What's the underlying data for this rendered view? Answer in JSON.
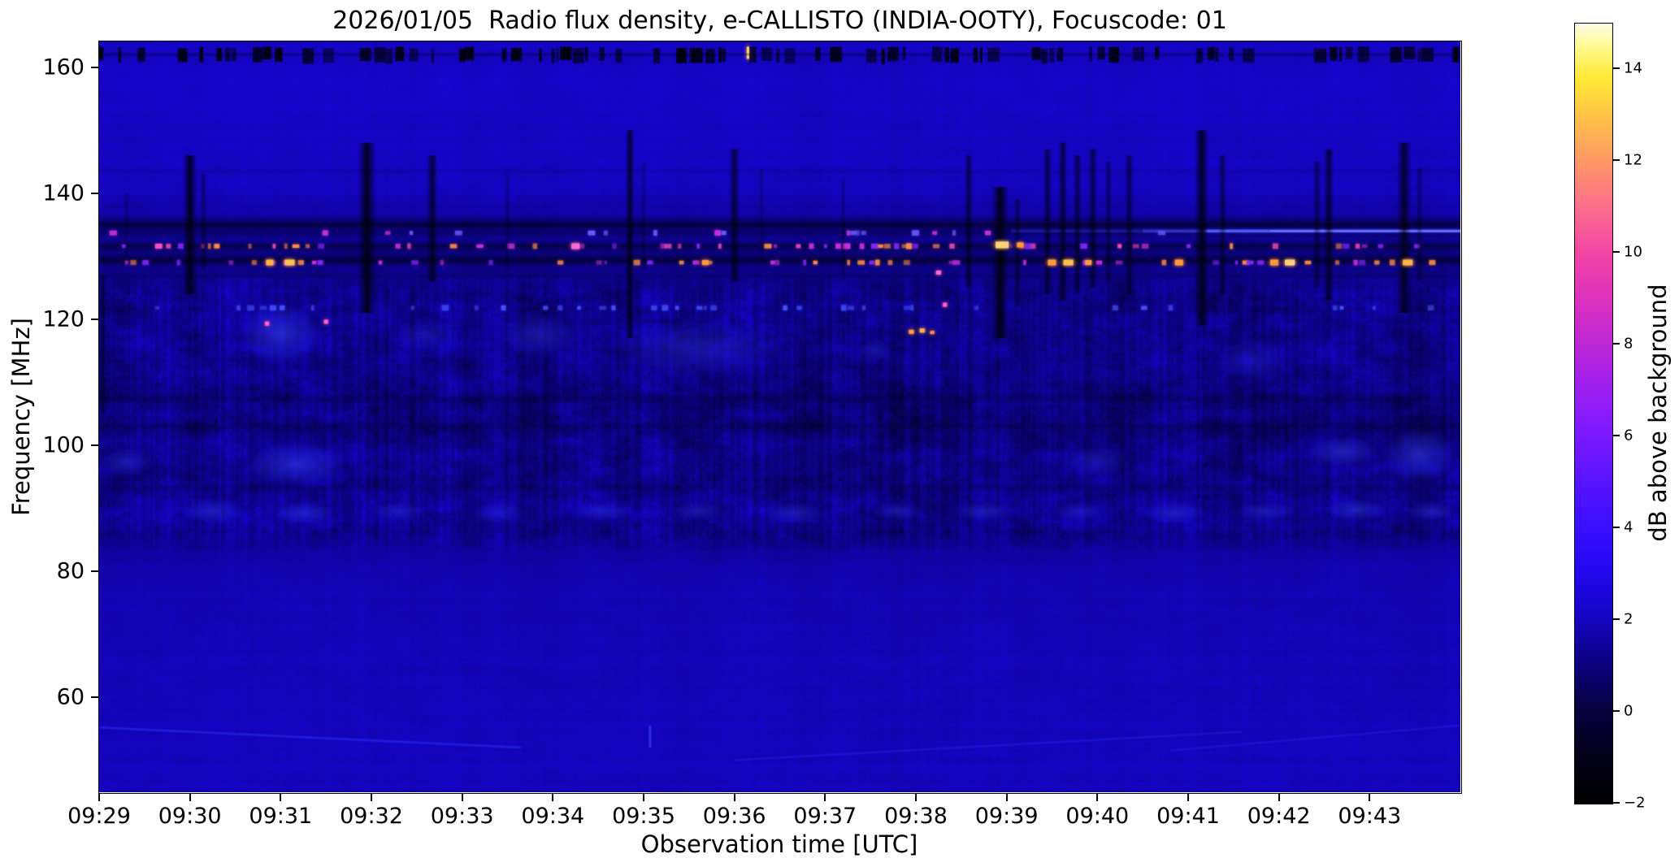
{
  "chart_data": {
    "type": "heatmap",
    "subtype": "radio-spectrogram",
    "title": "2026/01/05  Radio flux density, e-CALLISTO (INDIA-OOTY), Focuscode: 01",
    "xlabel": "Observation time [UTC]",
    "ylabel": "Frequency [MHz]",
    "x_tick_labels": [
      "09:29",
      "09:30",
      "09:31",
      "09:32",
      "09:33",
      "09:34",
      "09:35",
      "09:36",
      "09:37",
      "09:38",
      "09:39",
      "09:40",
      "09:41",
      "09:42",
      "09:43"
    ],
    "x_range_minutes": [
      0,
      15
    ],
    "y_ticks_mhz": [
      60,
      80,
      100,
      120,
      140,
      160
    ],
    "y_range_mhz": [
      44.9,
      164.1
    ],
    "grid": false,
    "colorbar": {
      "label": "dB above background",
      "tick_labels": [
        "−2",
        "0",
        "2",
        "4",
        "6",
        "8",
        "10",
        "12",
        "14"
      ],
      "tick_values": [
        -2,
        0,
        2,
        4,
        6,
        8,
        10,
        12,
        14
      ],
      "range": [
        -2,
        15
      ],
      "colormap": "gnuplot2-like",
      "stops": [
        [
          0.0,
          "#000000"
        ],
        [
          0.06,
          "#030118"
        ],
        [
          0.12,
          "#07013f"
        ],
        [
          0.18,
          "#0d0280"
        ],
        [
          0.24,
          "#1504c4"
        ],
        [
          0.3,
          "#2408f0"
        ],
        [
          0.36,
          "#3c0fff"
        ],
        [
          0.42,
          "#5c14ff"
        ],
        [
          0.48,
          "#7e1aff"
        ],
        [
          0.53,
          "#9c1ff2"
        ],
        [
          0.58,
          "#b826d8"
        ],
        [
          0.64,
          "#d930c0"
        ],
        [
          0.7,
          "#f043a6"
        ],
        [
          0.76,
          "#fb6b8e"
        ],
        [
          0.82,
          "#fe9567"
        ],
        [
          0.88,
          "#ffc148"
        ],
        [
          0.93,
          "#ffe832"
        ],
        [
          0.97,
          "#fff98e"
        ],
        [
          1.0,
          "#fffce8"
        ]
      ]
    },
    "render_seed": 77031,
    "background_profile_db": [
      [
        45,
        1.95
      ],
      [
        52,
        2.0
      ],
      [
        58,
        1.95
      ],
      [
        66,
        1.9
      ],
      [
        74,
        1.85
      ],
      [
        80,
        1.8
      ],
      [
        83,
        1.5
      ],
      [
        86,
        1.15
      ],
      [
        89,
        1.4
      ],
      [
        92,
        1.25
      ],
      [
        95,
        1.2
      ],
      [
        98,
        1.3
      ],
      [
        101,
        1.0
      ],
      [
        104,
        0.95
      ],
      [
        107,
        1.0
      ],
      [
        110,
        1.15
      ],
      [
        113,
        1.2
      ],
      [
        116,
        1.25
      ],
      [
        119,
        1.3
      ],
      [
        122,
        1.2
      ],
      [
        125,
        1.15
      ],
      [
        127,
        1.35
      ],
      [
        129,
        1.1
      ],
      [
        131,
        1.0
      ],
      [
        133,
        1.25
      ],
      [
        136,
        1.45
      ],
      [
        138,
        1.7
      ],
      [
        141,
        2.0
      ],
      [
        146,
        2.05
      ],
      [
        152,
        2.1
      ],
      [
        158,
        2.15
      ],
      [
        161,
        2.0
      ],
      [
        163,
        2.1
      ],
      [
        164,
        2.05
      ]
    ],
    "features": {
      "top_band": {
        "f_low": 160.8,
        "f_high": 163.3,
        "style": "intermittent black dashes",
        "bright_tick_t": 7.15
      },
      "dark_rows": [
        {
          "f": 135.0,
          "half_h": 5,
          "alpha": 0.66
        },
        {
          "f": 133.6,
          "half_h": 3,
          "alpha": 0.32
        },
        {
          "f": 131.6,
          "half_h": 3,
          "alpha": 0.5
        },
        {
          "f": 129.3,
          "half_h": 4,
          "alpha": 0.62
        },
        {
          "f": 126.8,
          "half_h": 2,
          "alpha": 0.22
        },
        {
          "f": 143.5,
          "half_h": 2,
          "alpha": 0.1
        },
        {
          "f": 107.3,
          "half_h": 3,
          "alpha": 0.26
        },
        {
          "f": 102.9,
          "half_h": 4,
          "alpha": 0.26
        },
        {
          "f": 93.2,
          "half_h": 2.5,
          "alpha": 0.2
        }
      ],
      "dot_rows": [
        {
          "f": 131.6,
          "palette": [
            "#c92fe2",
            "#ff4fc0",
            "#8326ff",
            "#ff8c46"
          ],
          "density_windows": [
            [
              0.1,
              4.2,
              0.5
            ],
            [
              6.2,
              9.1,
              0.75
            ],
            [
              9.6,
              11.4,
              0.8
            ],
            [
              12.9,
              14.7,
              0.7
            ]
          ],
          "base_density": 0.38
        },
        {
          "f": 129.0,
          "palette": [
            "#ff8c46",
            "#c92fe2",
            "#8326ff"
          ],
          "density_windows": [
            [
              0.2,
              3.9,
              0.45
            ],
            [
              6.4,
              8.9,
              0.5
            ],
            [
              9.8,
              11.3,
              0.6
            ],
            [
              12.9,
              14.8,
              0.5
            ]
          ],
          "base_density": 0.3
        },
        {
          "f": 121.8,
          "palette": [
            "#4450ff",
            "#3a43f0"
          ],
          "density_windows": [
            [
              3.9,
              8.3,
              0.5
            ]
          ],
          "base_density": 0.22
        },
        {
          "f": 133.7,
          "palette": [
            "#6a5cff",
            "#c92fe2"
          ],
          "density_windows": [
            [
              6.5,
              10.5,
              0.3
            ]
          ],
          "base_density": 0.12
        }
      ],
      "bright_streak": {
        "f": 134.0,
        "segments": [
          [
            10.05,
            11.5,
            0.18
          ],
          [
            11.5,
            12.2,
            0.45
          ],
          [
            12.2,
            15.0,
            0.85
          ]
        ],
        "color": "#4750ff"
      },
      "bright_blobs": [
        {
          "t": 1.88,
          "f": 129.0,
          "w": 9,
          "h": 7,
          "core": "#ffb347",
          "halo": "#ff4fc0"
        },
        {
          "t": 2.1,
          "f": 129.0,
          "w": 12,
          "h": 7,
          "core": "#ffc04e",
          "halo": "#ff4fc0"
        },
        {
          "t": 5.25,
          "f": 131.6,
          "w": 10,
          "h": 7,
          "core": "#ff6ad0",
          "halo": "#c92fe2"
        },
        {
          "t": 6.68,
          "f": 129.0,
          "w": 8,
          "h": 6,
          "core": "#ff9a3c",
          "halo": "#ff4fc0"
        },
        {
          "t": 9.95,
          "f": 131.8,
          "w": 16,
          "h": 8,
          "core": "#ffd27a",
          "halo": "#ff8c46"
        },
        {
          "t": 10.15,
          "f": 131.8,
          "w": 8,
          "h": 6,
          "core": "#ff9a3c",
          "halo": "#ff4fc0"
        },
        {
          "t": 10.5,
          "f": 129.0,
          "w": 10,
          "h": 7,
          "core": "#ff9a3c",
          "halo": "#ff4fc0"
        },
        {
          "t": 10.68,
          "f": 129.0,
          "w": 12,
          "h": 7,
          "core": "#ffc04e",
          "halo": "#ff8c46"
        },
        {
          "t": 10.9,
          "f": 129.0,
          "w": 8,
          "h": 6,
          "core": "#ff9a3c",
          "halo": "#c92fe2"
        },
        {
          "t": 11.9,
          "f": 129.0,
          "w": 10,
          "h": 7,
          "core": "#ff9a3c",
          "halo": "#ff4fc0"
        },
        {
          "t": 12.95,
          "f": 129.0,
          "w": 10,
          "h": 7,
          "core": "#ff9a3c",
          "halo": "#ff4fc0"
        },
        {
          "t": 13.12,
          "f": 129.0,
          "w": 12,
          "h": 7,
          "core": "#ffd27a",
          "halo": "#ff8c46"
        },
        {
          "t": 14.42,
          "f": 129.0,
          "w": 12,
          "h": 7,
          "core": "#ffb347",
          "halo": "#ff4fc0"
        },
        {
          "t": 9.25,
          "f": 127.4,
          "w": 6,
          "h": 5,
          "core": "#ff6ad0",
          "halo": "#c92fe2"
        },
        {
          "t": 9.32,
          "f": 122.3,
          "w": 5,
          "h": 5,
          "core": "#ff5fd0",
          "halo": "#8326ff"
        },
        {
          "t": 1.85,
          "f": 119.3,
          "w": 5,
          "h": 5,
          "core": "#ff5fd0",
          "halo": "#8326ff"
        },
        {
          "t": 2.5,
          "f": 119.6,
          "w": 5,
          "h": 5,
          "core": "#ff5fd0",
          "halo": "#8326ff"
        },
        {
          "t": 8.95,
          "f": 118.0,
          "w": 6,
          "h": 5,
          "core": "#ff9a3c",
          "halo": "#ff4fc0"
        },
        {
          "t": 9.07,
          "f": 118.2,
          "w": 6,
          "h": 5,
          "core": "#ffb347",
          "halo": "#ff4fc0"
        },
        {
          "t": 9.18,
          "f": 117.9,
          "w": 5,
          "h": 4,
          "core": "#ff8c46",
          "halo": "#c92fe2"
        },
        {
          "t": 7.15,
          "f": 162.3,
          "w": 3,
          "h": 15,
          "core": "#ffd27a",
          "halo": "#ff8c46"
        }
      ],
      "vertical_dropouts": [
        {
          "t": 0.04,
          "hw": 2.5,
          "f0": 127,
          "f1": 105,
          "a": 0.5
        },
        {
          "t": 0.3,
          "hw": 1.5,
          "f0": 140,
          "f1": 130,
          "a": 0.3
        },
        {
          "t": 1.0,
          "hw": 4,
          "f0": 146,
          "f1": 124,
          "a": 0.85
        },
        {
          "t": 1.15,
          "hw": 2,
          "f0": 143,
          "f1": 128,
          "a": 0.4
        },
        {
          "t": 2.95,
          "hw": 5,
          "f0": 148,
          "f1": 121,
          "a": 0.9
        },
        {
          "t": 3.67,
          "hw": 3,
          "f0": 146,
          "f1": 126,
          "a": 0.75
        },
        {
          "t": 4.5,
          "hw": 1.5,
          "f0": 143,
          "f1": 128,
          "a": 0.3
        },
        {
          "t": 5.85,
          "hw": 2.5,
          "f0": 150,
          "f1": 117,
          "a": 0.8
        },
        {
          "t": 6.0,
          "hw": 1.5,
          "f0": 145,
          "f1": 128,
          "a": 0.35
        },
        {
          "t": 7.0,
          "hw": 3,
          "f0": 147,
          "f1": 126,
          "a": 0.7
        },
        {
          "t": 7.3,
          "hw": 1.5,
          "f0": 144,
          "f1": 129,
          "a": 0.3
        },
        {
          "t": 8.2,
          "hw": 1.5,
          "f0": 142,
          "f1": 127,
          "a": 0.3
        },
        {
          "t": 9.58,
          "hw": 2.5,
          "f0": 146,
          "f1": 125,
          "a": 0.6
        },
        {
          "t": 9.93,
          "hw": 5,
          "f0": 141,
          "f1": 117,
          "a": 0.9
        },
        {
          "t": 10.12,
          "hw": 2,
          "f0": 139,
          "f1": 122,
          "a": 0.5
        },
        {
          "t": 10.45,
          "hw": 2.5,
          "f0": 147,
          "f1": 124,
          "a": 0.65
        },
        {
          "t": 10.62,
          "hw": 2.5,
          "f0": 148,
          "f1": 123,
          "a": 0.7
        },
        {
          "t": 10.78,
          "hw": 2.5,
          "f0": 146,
          "f1": 124,
          "a": 0.6
        },
        {
          "t": 10.95,
          "hw": 2.5,
          "f0": 147,
          "f1": 125,
          "a": 0.65
        },
        {
          "t": 11.12,
          "hw": 2,
          "f0": 145,
          "f1": 126,
          "a": 0.5
        },
        {
          "t": 11.35,
          "hw": 2.5,
          "f0": 146,
          "f1": 124,
          "a": 0.6
        },
        {
          "t": 12.15,
          "hw": 4,
          "f0": 150,
          "f1": 119,
          "a": 0.85
        },
        {
          "t": 12.38,
          "hw": 2.5,
          "f0": 146,
          "f1": 124,
          "a": 0.55
        },
        {
          "t": 13.42,
          "hw": 2.5,
          "f0": 145,
          "f1": 125,
          "a": 0.5
        },
        {
          "t": 13.55,
          "hw": 3,
          "f0": 147,
          "f1": 123,
          "a": 0.7
        },
        {
          "t": 14.38,
          "hw": 4,
          "f0": 148,
          "f1": 121,
          "a": 0.8
        },
        {
          "t": 14.55,
          "hw": 2,
          "f0": 144,
          "f1": 126,
          "a": 0.4
        }
      ],
      "glow_patches": [
        {
          "t0": 1.55,
          "t1": 2.45,
          "f0": 113,
          "f1": 122.5,
          "a": 0.55
        },
        {
          "t0": 1.6,
          "t1": 2.75,
          "f0": 93.5,
          "f1": 100.5,
          "a": 0.5
        },
        {
          "t0": 0.0,
          "t1": 0.6,
          "f0": 95,
          "f1": 99.5,
          "a": 0.35
        },
        {
          "t0": 4.4,
          "t1": 5.3,
          "f0": 114,
          "f1": 121,
          "a": 0.3
        },
        {
          "t0": 5.6,
          "t1": 7.6,
          "f0": 111,
          "f1": 120,
          "a": 0.28
        },
        {
          "t0": 3.2,
          "t1": 4.0,
          "f0": 115,
          "f1": 120,
          "a": 0.22
        },
        {
          "t0": 8.35,
          "t1": 8.75,
          "f0": 113,
          "f1": 117,
          "a": 0.25
        },
        {
          "t0": 12.3,
          "t1": 13.1,
          "f0": 110,
          "f1": 117,
          "a": 0.22
        },
        {
          "t0": 13.3,
          "t1": 14.1,
          "f0": 96.5,
          "f1": 101.5,
          "a": 0.45
        },
        {
          "t0": 14.15,
          "t1": 14.95,
          "f0": 94,
          "f1": 103,
          "a": 0.5
        },
        {
          "t0": 10.6,
          "t1": 11.4,
          "f0": 95,
          "f1": 100,
          "a": 0.25
        },
        {
          "t0": 0.9,
          "t1": 1.6,
          "f0": 87.5,
          "f1": 91.5,
          "a": 0.4
        },
        {
          "t0": 1.9,
          "t1": 2.6,
          "f0": 87.5,
          "f1": 91,
          "a": 0.45
        },
        {
          "t0": 3.0,
          "t1": 3.6,
          "f0": 88,
          "f1": 91,
          "a": 0.35
        },
        {
          "t0": 4.1,
          "t1": 4.7,
          "f0": 87.5,
          "f1": 91,
          "a": 0.3
        },
        {
          "t0": 5.2,
          "t1": 5.9,
          "f0": 88,
          "f1": 91,
          "a": 0.35
        },
        {
          "t0": 6.3,
          "t1": 6.9,
          "f0": 88,
          "f1": 91,
          "a": 0.3
        },
        {
          "t0": 7.3,
          "t1": 8.0,
          "f0": 87.5,
          "f1": 91,
          "a": 0.35
        },
        {
          "t0": 8.5,
          "t1": 9.1,
          "f0": 88,
          "f1": 91,
          "a": 0.3
        },
        {
          "t0": 9.4,
          "t1": 10.1,
          "f0": 88,
          "f1": 91,
          "a": 0.35
        },
        {
          "t0": 10.5,
          "t1": 11.1,
          "f0": 88,
          "f1": 91,
          "a": 0.3
        },
        {
          "t0": 11.5,
          "t1": 12.2,
          "f0": 87.5,
          "f1": 91,
          "a": 0.4
        },
        {
          "t0": 12.5,
          "t1": 13.2,
          "f0": 88,
          "f1": 91,
          "a": 0.35
        },
        {
          "t0": 13.5,
          "t1": 14.2,
          "f0": 88,
          "f1": 91.5,
          "a": 0.45
        },
        {
          "t0": 14.4,
          "t1": 14.95,
          "f0": 88,
          "f1": 91,
          "a": 0.4
        }
      ],
      "diagonal_streaks": [
        {
          "t0": 0.0,
          "f0": 55.2,
          "t1": 4.65,
          "f1": 52.0,
          "a": 0.35
        },
        {
          "t0": 7.0,
          "f0": 50.0,
          "t1": 12.6,
          "f1": 54.5,
          "a": 0.2
        },
        {
          "t0": 11.8,
          "f0": 51.5,
          "t1": 15.0,
          "f1": 55.5,
          "a": 0.18
        }
      ],
      "bottom_tick": {
        "t": 6.07,
        "f0": 52.0,
        "f1": 55.5,
        "a": 0.5
      }
    }
  }
}
